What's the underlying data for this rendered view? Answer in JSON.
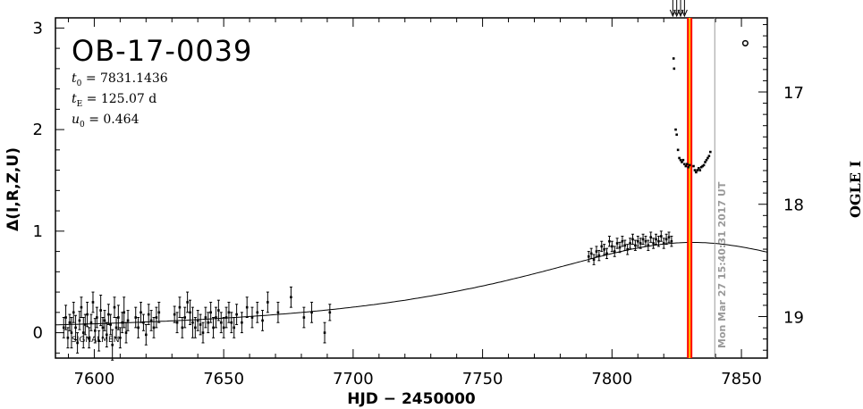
{
  "chart_data": {
    "type": "scatter",
    "event_name": "OB-17-0039",
    "params": [
      {
        "symbol": "t",
        "sub": "0",
        "rest": " = 7831.1436"
      },
      {
        "symbol": "t",
        "sub": "E",
        "rest": " = 125.07 d"
      },
      {
        "symbol": "u",
        "sub": "0",
        "rest": " = 0.464"
      }
    ],
    "xlabel": "HJD − 2450000",
    "ylabel": "Δ(I,R,Z,U)",
    "y2label": "OGLE I",
    "xlim": [
      7585,
      7860
    ],
    "ylim": [
      -0.25,
      3.1
    ],
    "y2lim": [
      19.37,
      16.34
    ],
    "x_ticks": [
      7600,
      7650,
      7700,
      7750,
      7800,
      7850
    ],
    "y_ticks": [
      0,
      1,
      2,
      3
    ],
    "y2_ticks": [
      17,
      18,
      19
    ],
    "vline_current": 7830,
    "vline_now": 7839.7,
    "vline_now_label": "Mon Mar 27 15:40:31 2017 UT",
    "signal_label": "SIGNALMEN",
    "model_params": {
      "t0": 7831.1436,
      "tE": 125.07,
      "u0": 0.464
    },
    "arrows_x": [
      7823.5,
      7825,
      7826.5,
      7828
    ],
    "baseline_points": [
      [
        7588.2,
        0.05,
        0.1
      ],
      [
        7589.0,
        0.15,
        0.12
      ],
      [
        7589.8,
        -0.05,
        0.1
      ],
      [
        7590.5,
        0.1,
        0.08
      ],
      [
        7591.2,
        0.0,
        0.15
      ],
      [
        7592.0,
        0.2,
        0.1
      ],
      [
        7592.8,
        0.05,
        0.12
      ],
      [
        7593.5,
        -0.1,
        0.1
      ],
      [
        7594.3,
        0.12,
        0.09
      ],
      [
        7595.0,
        0.25,
        0.1
      ],
      [
        7595.8,
        0.0,
        0.15
      ],
      [
        7596.5,
        0.08,
        0.1
      ],
      [
        7597.3,
        0.18,
        0.12
      ],
      [
        7598.0,
        -0.05,
        0.1
      ],
      [
        7598.8,
        0.1,
        0.08
      ],
      [
        7599.5,
        0.3,
        0.1
      ],
      [
        7600.3,
        0.02,
        0.12
      ],
      [
        7601.0,
        0.15,
        0.1
      ],
      [
        7601.8,
        -0.08,
        0.1
      ],
      [
        7602.5,
        0.22,
        0.15
      ],
      [
        7603.3,
        0.05,
        0.1
      ],
      [
        7604.0,
        0.12,
        0.1
      ],
      [
        7604.8,
        -0.02,
        0.12
      ],
      [
        7605.5,
        0.18,
        0.1
      ],
      [
        7606.3,
        0.08,
        0.1
      ],
      [
        7607.0,
        -0.12,
        0.15
      ],
      [
        7607.8,
        0.25,
        0.1
      ],
      [
        7608.5,
        0.05,
        0.1
      ],
      [
        7609.3,
        0.15,
        0.12
      ],
      [
        7610.0,
        -0.05,
        0.1
      ],
      [
        7610.8,
        0.1,
        0.1
      ],
      [
        7611.5,
        0.2,
        0.15
      ],
      [
        7612.3,
        0.0,
        0.1
      ],
      [
        7613.0,
        0.12,
        0.1
      ],
      [
        7616.0,
        0.15,
        0.1
      ],
      [
        7617.0,
        0.05,
        0.1
      ],
      [
        7618.0,
        0.2,
        0.1
      ],
      [
        7619.0,
        0.1,
        0.08
      ],
      [
        7620.0,
        -0.02,
        0.1
      ],
      [
        7621.0,
        0.18,
        0.1
      ],
      [
        7622.0,
        0.12,
        0.1
      ],
      [
        7623.0,
        0.05,
        0.1
      ],
      [
        7624.0,
        0.15,
        0.1
      ],
      [
        7625.0,
        0.2,
        0.1
      ],
      [
        7631.0,
        0.18,
        0.08
      ],
      [
        7632.0,
        0.1,
        0.1
      ],
      [
        7633.0,
        0.25,
        0.1
      ],
      [
        7634.0,
        0.05,
        0.1
      ],
      [
        7635.0,
        0.15,
        0.1
      ],
      [
        7636.0,
        0.3,
        0.1
      ],
      [
        7637.0,
        0.2,
        0.12
      ],
      [
        7638.0,
        0.1,
        0.15
      ],
      [
        7639.0,
        0.05,
        0.1
      ],
      [
        7640.0,
        0.12,
        0.1
      ],
      [
        7641.0,
        0.08,
        0.1
      ],
      [
        7642.0,
        0.0,
        0.1
      ],
      [
        7643.0,
        0.15,
        0.1
      ],
      [
        7644.0,
        0.1,
        0.1
      ],
      [
        7645.0,
        0.2,
        0.1
      ],
      [
        7646.0,
        0.05,
        0.1
      ],
      [
        7647.0,
        0.15,
        0.1
      ],
      [
        7648.0,
        0.22,
        0.1
      ],
      [
        7649.0,
        0.1,
        0.1
      ],
      [
        7650.0,
        0.05,
        0.1
      ],
      [
        7651.0,
        0.15,
        0.1
      ],
      [
        7652.0,
        0.2,
        0.1
      ],
      [
        7653.0,
        0.1,
        0.1
      ],
      [
        7654.0,
        0.05,
        0.1
      ],
      [
        7655.0,
        0.18,
        0.1
      ],
      [
        7657.0,
        0.1,
        0.1
      ],
      [
        7659.0,
        0.25,
        0.1
      ],
      [
        7661.0,
        0.15,
        0.1
      ],
      [
        7663.0,
        0.2,
        0.1
      ],
      [
        7665.0,
        0.12,
        0.1
      ],
      [
        7667.0,
        0.3,
        0.1
      ],
      [
        7671.0,
        0.2,
        0.1
      ],
      [
        7676.0,
        0.35,
        0.1
      ],
      [
        7681.0,
        0.15,
        0.1
      ],
      [
        7684.0,
        0.2,
        0.1
      ],
      [
        7689.0,
        0.0,
        0.1
      ],
      [
        7691.0,
        0.2,
        0.08
      ]
    ],
    "rise_points": [
      [
        7791.0,
        0.75,
        0.05
      ],
      [
        7792.0,
        0.78,
        0.05
      ],
      [
        7793.0,
        0.72,
        0.05
      ],
      [
        7794.0,
        0.8,
        0.05
      ],
      [
        7795.0,
        0.76,
        0.05
      ],
      [
        7796.0,
        0.85,
        0.05
      ],
      [
        7797.0,
        0.82,
        0.05
      ],
      [
        7798.0,
        0.78,
        0.05
      ],
      [
        7799.0,
        0.9,
        0.05
      ],
      [
        7800.0,
        0.85,
        0.05
      ],
      [
        7801.0,
        0.8,
        0.05
      ],
      [
        7802.0,
        0.88,
        0.05
      ],
      [
        7803.0,
        0.84,
        0.05
      ],
      [
        7804.0,
        0.9,
        0.05
      ],
      [
        7805.0,
        0.86,
        0.05
      ],
      [
        7806.0,
        0.82,
        0.05
      ],
      [
        7807.0,
        0.88,
        0.05
      ],
      [
        7808.0,
        0.92,
        0.05
      ],
      [
        7809.0,
        0.86,
        0.05
      ],
      [
        7810.0,
        0.9,
        0.05
      ],
      [
        7811.0,
        0.88,
        0.05
      ],
      [
        7812.0,
        0.92,
        0.05
      ],
      [
        7813.0,
        0.9,
        0.05
      ],
      [
        7814.0,
        0.86,
        0.05
      ],
      [
        7815.0,
        0.94,
        0.05
      ],
      [
        7816.0,
        0.88,
        0.05
      ],
      [
        7817.0,
        0.92,
        0.05
      ],
      [
        7818.0,
        0.9,
        0.05
      ],
      [
        7819.0,
        0.95,
        0.05
      ],
      [
        7820.0,
        0.88,
        0.05
      ],
      [
        7821.0,
        0.92,
        0.05
      ],
      [
        7822.0,
        0.94,
        0.05
      ],
      [
        7823.0,
        0.9,
        0.05
      ]
    ],
    "peak_points": [
      [
        7823.8,
        2.7
      ],
      [
        7824.0,
        2.6
      ],
      [
        7824.6,
        2.0
      ],
      [
        7825.0,
        1.95
      ],
      [
        7825.5,
        1.8
      ],
      [
        7826.0,
        1.72
      ],
      [
        7826.5,
        1.7
      ],
      [
        7827.0,
        1.68
      ],
      [
        7827.5,
        1.7
      ],
      [
        7828.0,
        1.66
      ],
      [
        7828.5,
        1.64
      ],
      [
        7829.0,
        1.66
      ],
      [
        7829.5,
        1.63
      ],
      [
        7830.0,
        1.65
      ],
      [
        7831.5,
        1.64
      ],
      [
        7832.0,
        1.6
      ],
      [
        7832.5,
        1.58
      ],
      [
        7833.0,
        1.6
      ],
      [
        7833.5,
        1.62
      ],
      [
        7834.0,
        1.6
      ],
      [
        7834.5,
        1.63
      ],
      [
        7835.0,
        1.64
      ],
      [
        7835.5,
        1.65
      ],
      [
        7836.0,
        1.68
      ],
      [
        7836.5,
        1.7
      ],
      [
        7837.0,
        1.72
      ],
      [
        7837.5,
        1.74
      ],
      [
        7838.0,
        1.78
      ]
    ],
    "open_points": [
      [
        7851.5,
        2.85
      ]
    ]
  }
}
